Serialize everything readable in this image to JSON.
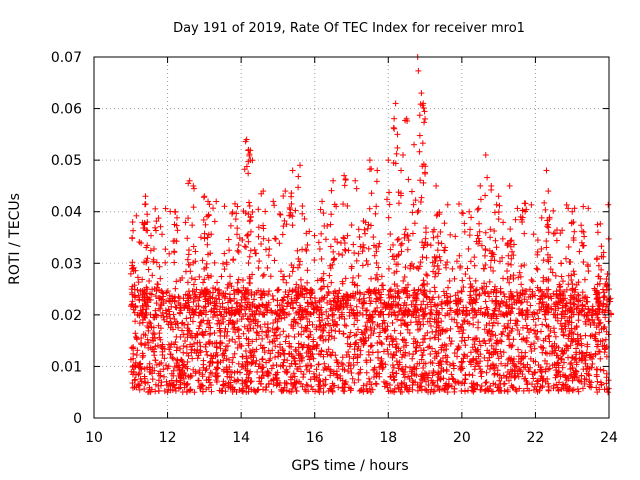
{
  "chart_data": {
    "type": "scatter",
    "title": "Day 191 of 2019, Rate Of TEC Index for receiver mro1",
    "xlabel": "GPS time / hours",
    "ylabel": "ROTI / TECUs",
    "xlim": [
      10,
      24
    ],
    "ylim": [
      0,
      0.07
    ],
    "x_ticks": [
      10,
      12,
      14,
      16,
      18,
      20,
      22,
      24
    ],
    "x_tick_labels": [
      "10",
      "12",
      "14",
      "16",
      "18",
      "20",
      "22",
      "24"
    ],
    "y_ticks": [
      0,
      0.01,
      0.02,
      0.03,
      0.04,
      0.05,
      0.06,
      0.07
    ],
    "y_tick_labels": [
      "0",
      "0.01",
      "0.02",
      "0.03",
      "0.04",
      "0.05",
      "0.06",
      "0.07"
    ],
    "grid": true,
    "marker": "plus",
    "color": "#ff0000",
    "series": [
      {
        "name": "mro1",
        "x_range": [
          11.0,
          24.0
        ],
        "dense_band": [
          0.005,
          0.025
        ],
        "sample_points": [
          [
            11.05,
            0.038
          ],
          [
            11.4,
            0.043
          ],
          [
            11.45,
            0.038
          ],
          [
            12.2,
            0.04
          ],
          [
            12.6,
            0.046
          ],
          [
            12.7,
            0.045
          ],
          [
            13.0,
            0.043
          ],
          [
            13.1,
            0.042
          ],
          [
            13.9,
            0.041
          ],
          [
            14.15,
            0.054
          ],
          [
            14.2,
            0.052
          ],
          [
            14.25,
            0.05
          ],
          [
            14.6,
            0.044
          ],
          [
            15.2,
            0.044
          ],
          [
            15.4,
            0.048
          ],
          [
            15.6,
            0.049
          ],
          [
            16.2,
            0.042
          ],
          [
            16.5,
            0.046
          ],
          [
            16.8,
            0.047
          ],
          [
            17.1,
            0.046
          ],
          [
            17.5,
            0.05
          ],
          [
            17.7,
            0.048
          ],
          [
            18.0,
            0.05
          ],
          [
            18.2,
            0.061
          ],
          [
            18.25,
            0.055
          ],
          [
            18.4,
            0.051
          ],
          [
            18.5,
            0.058
          ],
          [
            18.7,
            0.053
          ],
          [
            18.8,
            0.07
          ],
          [
            18.9,
            0.063
          ],
          [
            18.95,
            0.061
          ],
          [
            19.0,
            0.058
          ],
          [
            19.3,
            0.045
          ],
          [
            20.2,
            0.04
          ],
          [
            20.5,
            0.045
          ],
          [
            20.65,
            0.051
          ],
          [
            20.8,
            0.045
          ],
          [
            21.0,
            0.043
          ],
          [
            21.3,
            0.045
          ],
          [
            21.6,
            0.039
          ],
          [
            22.3,
            0.048
          ],
          [
            22.35,
            0.044
          ],
          [
            22.7,
            0.03
          ],
          [
            23.0,
            0.04
          ],
          [
            23.3,
            0.041
          ],
          [
            23.7,
            0.036
          ],
          [
            23.9,
            0.026
          ],
          [
            24.0,
            0.025
          ]
        ]
      }
    ]
  }
}
